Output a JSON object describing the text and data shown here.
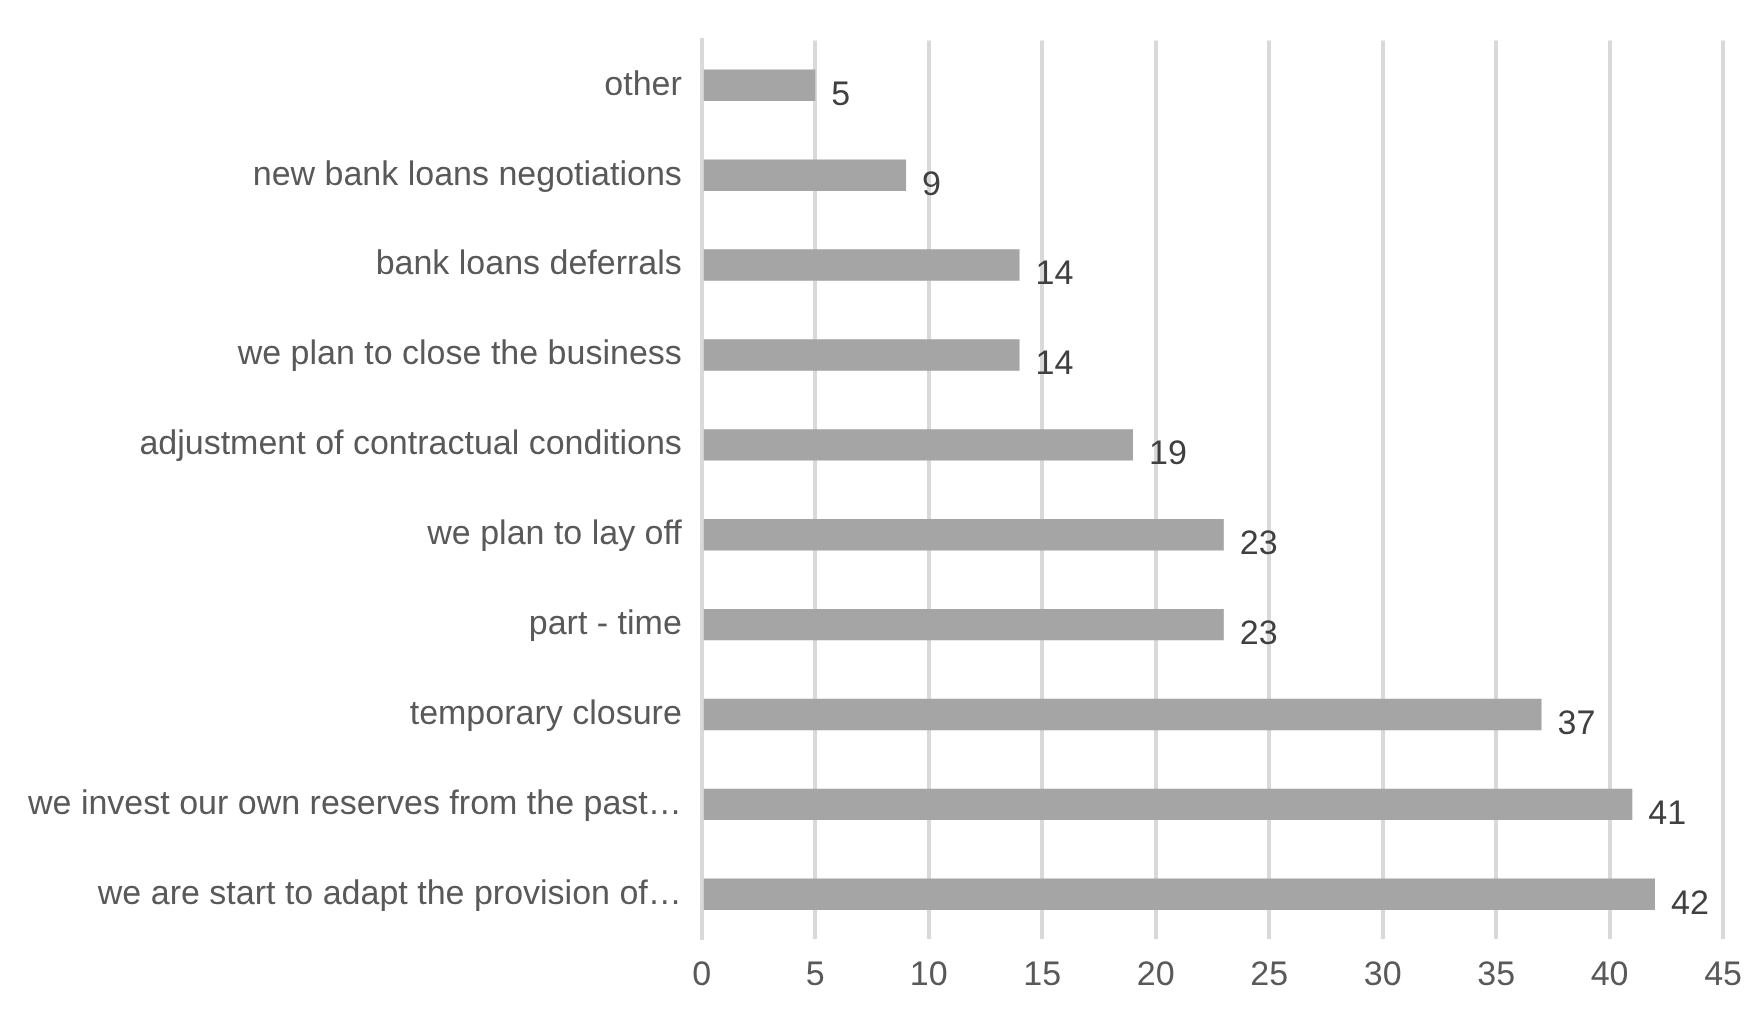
{
  "chart_data": {
    "type": "bar",
    "orientation": "horizontal",
    "categories": [
      "other",
      "new bank loans negotiations",
      "bank loans deferrals",
      "we plan to close the business",
      "adjustment of contractual conditions",
      "we plan to lay off",
      "part - time",
      "temporary closure",
      "we invest our own reserves from the past…",
      "we are start to adapt the provision of…"
    ],
    "values": [
      5,
      9,
      14,
      14,
      19,
      23,
      23,
      37,
      41,
      42
    ],
    "color": "#a5a5a5",
    "xlim": [
      0,
      45
    ],
    "xticks": [
      0,
      5,
      10,
      15,
      20,
      25,
      30,
      35,
      40,
      45
    ],
    "grid": "x",
    "data_labels": true
  }
}
